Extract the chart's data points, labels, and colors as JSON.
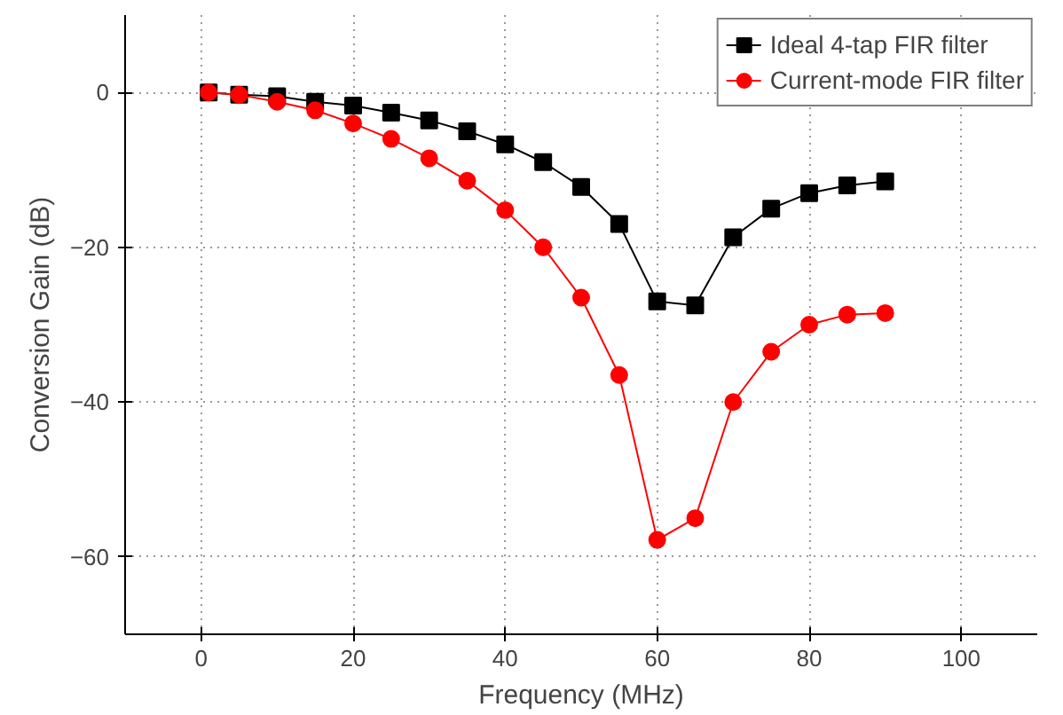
{
  "chart_data": {
    "type": "line",
    "xlabel": "Frequency (MHz)",
    "ylabel": "Conversion Gain (dB)",
    "x": [
      1,
      5,
      10,
      15,
      20,
      25,
      30,
      35,
      40,
      45,
      50,
      55,
      60,
      65,
      70,
      75,
      80,
      85,
      90
    ],
    "series": [
      {
        "name": "Ideal 4-tap FIR filter",
        "color": "#000000",
        "marker": "square",
        "values": [
          0,
          -0.3,
          -0.5,
          -1.2,
          -1.7,
          -2.6,
          -3.6,
          -5,
          -6.7,
          -9,
          -12.2,
          -17,
          -27,
          -27.5,
          -18.7,
          -15,
          -13,
          -12,
          -11.5
        ]
      },
      {
        "name": "Current-mode FIR filter",
        "color": "#ff0000",
        "marker": "circle",
        "values": [
          0,
          -0.3,
          -1.2,
          -2.3,
          -4,
          -6,
          -8.5,
          -11.4,
          -15.2,
          -20,
          -26.5,
          -36.5,
          -57.8,
          -55,
          -40,
          -33.5,
          -30,
          -28.7,
          -28.5
        ]
      }
    ],
    "xlim": [
      -10,
      110
    ],
    "xticks": [
      0,
      20,
      40,
      60,
      80,
      100
    ],
    "ylim": [
      -70,
      10
    ],
    "yticks": [
      0,
      -20,
      -40,
      -60
    ],
    "grid": true,
    "legend": "top right",
    "line_style": "solid"
  }
}
